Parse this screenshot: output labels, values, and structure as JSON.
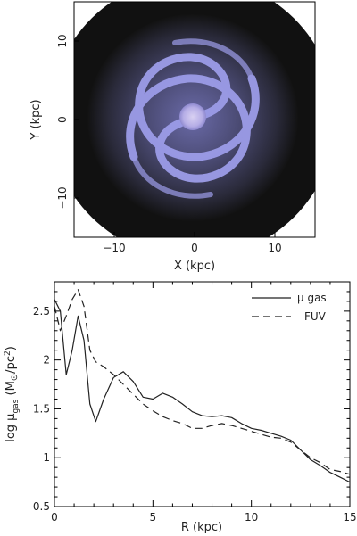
{
  "chart_data": [
    {
      "type": "heatmap",
      "xlabel": "X (kpc)",
      "ylabel": "Y (kpc)",
      "xlim": [
        -15,
        15
      ],
      "ylim": [
        -15,
        15
      ],
      "xticks": [
        -10,
        0,
        10
      ],
      "yticks": [
        -10,
        0,
        10
      ],
      "xtick_labels": [
        "−10",
        "0",
        "10"
      ],
      "ytick_labels": [
        "−10",
        "0",
        "10"
      ],
      "colors": {
        "background": "#121212",
        "arm": "#9b9be6",
        "halo": "#5a5a8a"
      }
    },
    {
      "type": "line",
      "xlabel": "R (kpc)",
      "ylabel_main": "log μ",
      "ylabel_sub": "gas",
      "ylabel_units": " (M",
      "ylabel_sun": "⊙",
      "ylabel_tail": "/pc",
      "ylabel_exp": "2",
      "ylabel_close": ")",
      "xlim": [
        0,
        15
      ],
      "ylim": [
        0.5,
        2.8
      ],
      "xticks": [
        0,
        5,
        10,
        15
      ],
      "yticks": [
        0.5,
        1,
        1.5,
        2,
        2.5
      ],
      "xtick_labels": [
        "0",
        "5",
        "10",
        "15"
      ],
      "ytick_labels": [
        "0.5",
        "1",
        "1.5",
        "2",
        "2.5"
      ],
      "legend_position": "top-right",
      "series": [
        {
          "name": "μ gas",
          "style": "solid",
          "x": [
            0,
            0.3,
            0.6,
            0.9,
            1.2,
            1.5,
            1.8,
            2.1,
            2.5,
            3.0,
            3.5,
            4.0,
            4.5,
            5.0,
            5.5,
            6.0,
            6.5,
            7.0,
            7.5,
            8.0,
            8.5,
            9.0,
            9.5,
            10.0,
            10.5,
            11.0,
            11.5,
            12.0,
            12.5,
            13.0,
            13.5,
            14.0,
            14.5,
            15.0
          ],
          "y": [
            2.62,
            2.5,
            1.85,
            2.1,
            2.45,
            2.2,
            1.55,
            1.37,
            1.6,
            1.82,
            1.88,
            1.78,
            1.62,
            1.6,
            1.66,
            1.62,
            1.55,
            1.47,
            1.43,
            1.42,
            1.43,
            1.41,
            1.35,
            1.3,
            1.28,
            1.25,
            1.22,
            1.18,
            1.08,
            0.98,
            0.92,
            0.85,
            0.8,
            0.75
          ]
        },
        {
          "name": "FUV",
          "style": "dashed",
          "x": [
            0,
            0.3,
            0.6,
            0.9,
            1.2,
            1.5,
            1.8,
            2.1,
            2.5,
            3.0,
            3.5,
            4.0,
            4.5,
            5.0,
            5.5,
            6.0,
            6.5,
            7.0,
            7.5,
            8.0,
            8.5,
            9.0,
            9.5,
            10.0,
            10.5,
            11.0,
            11.5,
            12.0,
            12.5,
            13.0,
            13.5,
            14.0,
            14.5,
            15.0
          ],
          "y": [
            2.55,
            2.3,
            2.45,
            2.62,
            2.72,
            2.55,
            2.1,
            1.98,
            1.93,
            1.85,
            1.75,
            1.65,
            1.55,
            1.48,
            1.42,
            1.38,
            1.35,
            1.3,
            1.3,
            1.33,
            1.35,
            1.33,
            1.3,
            1.27,
            1.24,
            1.21,
            1.2,
            1.16,
            1.08,
            1.0,
            0.95,
            0.88,
            0.86,
            0.83
          ]
        }
      ]
    }
  ]
}
